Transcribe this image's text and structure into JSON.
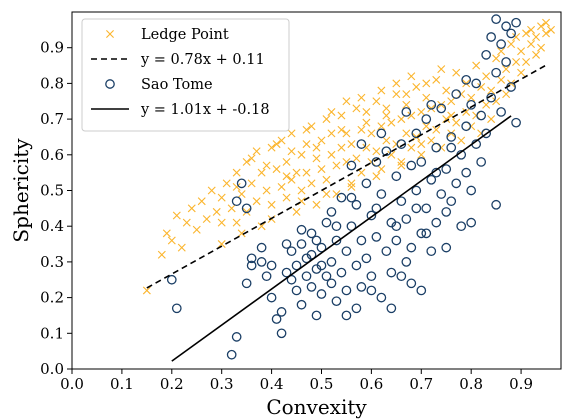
{
  "chart_data": {
    "type": "scatter",
    "xlabel": "Convexity",
    "ylabel": "Sphericity",
    "xlim": [
      0.0,
      0.98
    ],
    "ylim": [
      0.0,
      1.0
    ],
    "xticks": [
      "0.0",
      "0.1",
      "0.2",
      "0.3",
      "0.4",
      "0.5",
      "0.6",
      "0.7",
      "0.8",
      "0.9"
    ],
    "yticks": [
      "0.0",
      "0.1",
      "0.2",
      "0.3",
      "0.4",
      "0.5",
      "0.6",
      "0.7",
      "0.8",
      "0.9"
    ],
    "grid": false,
    "legend_position": "top-left",
    "colors": {
      "ledge": "#FBB52D",
      "sao": "#1B3F66",
      "line": "#000000"
    },
    "series": [
      {
        "name": "Ledge Point",
        "marker": "x",
        "points": [
          [
            0.15,
            0.22
          ],
          [
            0.18,
            0.32
          ],
          [
            0.19,
            0.38
          ],
          [
            0.2,
            0.36
          ],
          [
            0.21,
            0.43
          ],
          [
            0.22,
            0.34
          ],
          [
            0.23,
            0.41
          ],
          [
            0.24,
            0.45
          ],
          [
            0.25,
            0.39
          ],
          [
            0.26,
            0.47
          ],
          [
            0.27,
            0.42
          ],
          [
            0.28,
            0.5
          ],
          [
            0.29,
            0.44
          ],
          [
            0.3,
            0.35
          ],
          [
            0.3,
            0.48
          ],
          [
            0.31,
            0.52
          ],
          [
            0.32,
            0.45
          ],
          [
            0.33,
            0.55
          ],
          [
            0.33,
            0.41
          ],
          [
            0.34,
            0.49
          ],
          [
            0.35,
            0.58
          ],
          [
            0.35,
            0.44
          ],
          [
            0.36,
            0.52
          ],
          [
            0.37,
            0.47
          ],
          [
            0.37,
            0.61
          ],
          [
            0.38,
            0.55
          ],
          [
            0.38,
            0.4
          ],
          [
            0.39,
            0.5
          ],
          [
            0.4,
            0.62
          ],
          [
            0.4,
            0.46
          ],
          [
            0.41,
            0.56
          ],
          [
            0.42,
            0.51
          ],
          [
            0.42,
            0.64
          ],
          [
            0.43,
            0.48
          ],
          [
            0.43,
            0.58
          ],
          [
            0.44,
            0.53
          ],
          [
            0.44,
            0.66
          ],
          [
            0.45,
            0.55
          ],
          [
            0.45,
            0.44
          ],
          [
            0.46,
            0.6
          ],
          [
            0.46,
            0.5
          ],
          [
            0.47,
            0.63
          ],
          [
            0.47,
            0.55
          ],
          [
            0.48,
            0.68
          ],
          [
            0.48,
            0.52
          ],
          [
            0.49,
            0.59
          ],
          [
            0.49,
            0.46
          ],
          [
            0.5,
            0.64
          ],
          [
            0.5,
            0.56
          ],
          [
            0.51,
            0.7
          ],
          [
            0.51,
            0.53
          ],
          [
            0.52,
            0.6
          ],
          [
            0.52,
            0.66
          ],
          [
            0.53,
            0.57
          ],
          [
            0.53,
            0.49
          ],
          [
            0.54,
            0.62
          ],
          [
            0.54,
            0.71
          ],
          [
            0.55,
            0.58
          ],
          [
            0.55,
            0.66
          ],
          [
            0.56,
            0.52
          ],
          [
            0.56,
            0.63
          ],
          [
            0.57,
            0.73
          ],
          [
            0.57,
            0.59
          ],
          [
            0.58,
            0.67
          ],
          [
            0.58,
            0.55
          ],
          [
            0.59,
            0.62
          ],
          [
            0.59,
            0.72
          ],
          [
            0.6,
            0.58
          ],
          [
            0.6,
            0.66
          ],
          [
            0.61,
            0.75
          ],
          [
            0.61,
            0.61
          ],
          [
            0.62,
            0.68
          ],
          [
            0.62,
            0.56
          ],
          [
            0.63,
            0.64
          ],
          [
            0.63,
            0.73
          ],
          [
            0.64,
            0.6
          ],
          [
            0.64,
            0.69
          ],
          [
            0.65,
            0.77
          ],
          [
            0.65,
            0.63
          ],
          [
            0.66,
            0.7
          ],
          [
            0.66,
            0.58
          ],
          [
            0.67,
            0.66
          ],
          [
            0.67,
            0.74
          ],
          [
            0.68,
            0.62
          ],
          [
            0.68,
            0.71
          ],
          [
            0.69,
            0.79
          ],
          [
            0.69,
            0.65
          ],
          [
            0.7,
            0.72
          ],
          [
            0.7,
            0.6
          ],
          [
            0.71,
            0.68
          ],
          [
            0.71,
            0.76
          ],
          [
            0.72,
            0.64
          ],
          [
            0.72,
            0.73
          ],
          [
            0.73,
            0.81
          ],
          [
            0.73,
            0.67
          ],
          [
            0.74,
            0.74
          ],
          [
            0.74,
            0.62
          ],
          [
            0.75,
            0.7
          ],
          [
            0.75,
            0.78
          ],
          [
            0.76,
            0.66
          ],
          [
            0.76,
            0.75
          ],
          [
            0.77,
            0.83
          ],
          [
            0.77,
            0.69
          ],
          [
            0.78,
            0.77
          ],
          [
            0.78,
            0.64
          ],
          [
            0.79,
            0.72
          ],
          [
            0.79,
            0.8
          ],
          [
            0.8,
            0.68
          ],
          [
            0.8,
            0.76
          ],
          [
            0.81,
            0.85
          ],
          [
            0.81,
            0.71
          ],
          [
            0.82,
            0.79
          ],
          [
            0.82,
            0.66
          ],
          [
            0.83,
            0.74
          ],
          [
            0.83,
            0.82
          ],
          [
            0.84,
            0.7
          ],
          [
            0.84,
            0.78
          ],
          [
            0.85,
            0.87
          ],
          [
            0.85,
            0.75
          ],
          [
            0.86,
            0.81
          ],
          [
            0.86,
            0.89
          ],
          [
            0.87,
            0.77
          ],
          [
            0.87,
            0.84
          ],
          [
            0.88,
            0.91
          ],
          [
            0.88,
            0.8
          ],
          [
            0.89,
            0.86
          ],
          [
            0.89,
            0.93
          ],
          [
            0.9,
            0.83
          ],
          [
            0.9,
            0.89
          ],
          [
            0.91,
            0.94
          ],
          [
            0.91,
            0.86
          ],
          [
            0.92,
            0.91
          ],
          [
            0.92,
            0.95
          ],
          [
            0.93,
            0.88
          ],
          [
            0.93,
            0.93
          ],
          [
            0.94,
            0.96
          ],
          [
            0.94,
            0.9
          ],
          [
            0.95,
            0.94
          ],
          [
            0.95,
            0.97
          ],
          [
            0.96,
            0.95
          ],
          [
            0.36,
            0.59
          ],
          [
            0.41,
            0.63
          ],
          [
            0.44,
            0.61
          ],
          [
            0.47,
            0.67
          ],
          [
            0.52,
            0.72
          ],
          [
            0.55,
            0.75
          ],
          [
            0.58,
            0.76
          ],
          [
            0.62,
            0.78
          ],
          [
            0.65,
            0.8
          ],
          [
            0.68,
            0.82
          ],
          [
            0.33,
            0.51
          ],
          [
            0.39,
            0.57
          ],
          [
            0.43,
            0.54
          ],
          [
            0.49,
            0.62
          ],
          [
            0.54,
            0.67
          ],
          [
            0.59,
            0.69
          ],
          [
            0.63,
            0.71
          ],
          [
            0.67,
            0.77
          ],
          [
            0.71,
            0.8
          ],
          [
            0.74,
            0.84
          ],
          [
            0.3,
            0.41
          ],
          [
            0.34,
            0.38
          ],
          [
            0.4,
            0.42
          ],
          [
            0.46,
            0.47
          ],
          [
            0.51,
            0.49
          ],
          [
            0.56,
            0.51
          ],
          [
            0.61,
            0.54
          ],
          [
            0.66,
            0.57
          ],
          [
            0.7,
            0.63
          ],
          [
            0.76,
            0.71
          ]
        ]
      },
      {
        "name": "Sao Tome",
        "marker": "o",
        "points": [
          [
            0.2,
            0.25
          ],
          [
            0.21,
            0.17
          ],
          [
            0.32,
            0.04
          ],
          [
            0.33,
            0.09
          ],
          [
            0.33,
            0.47
          ],
          [
            0.34,
            0.52
          ],
          [
            0.35,
            0.45
          ],
          [
            0.35,
            0.24
          ],
          [
            0.36,
            0.29
          ],
          [
            0.38,
            0.3
          ],
          [
            0.39,
            0.26
          ],
          [
            0.4,
            0.2
          ],
          [
            0.41,
            0.14
          ],
          [
            0.42,
            0.16
          ],
          [
            0.42,
            0.1
          ],
          [
            0.43,
            0.27
          ],
          [
            0.44,
            0.33
          ],
          [
            0.45,
            0.22
          ],
          [
            0.45,
            0.29
          ],
          [
            0.46,
            0.35
          ],
          [
            0.46,
            0.18
          ],
          [
            0.47,
            0.26
          ],
          [
            0.47,
            0.31
          ],
          [
            0.48,
            0.38
          ],
          [
            0.48,
            0.23
          ],
          [
            0.49,
            0.15
          ],
          [
            0.49,
            0.28
          ],
          [
            0.5,
            0.21
          ],
          [
            0.5,
            0.34
          ],
          [
            0.51,
            0.41
          ],
          [
            0.51,
            0.26
          ],
          [
            0.52,
            0.3
          ],
          [
            0.52,
            0.44
          ],
          [
            0.53,
            0.19
          ],
          [
            0.53,
            0.36
          ],
          [
            0.54,
            0.48
          ],
          [
            0.54,
            0.27
          ],
          [
            0.55,
            0.33
          ],
          [
            0.55,
            0.22
          ],
          [
            0.56,
            0.4
          ],
          [
            0.56,
            0.57
          ],
          [
            0.57,
            0.29
          ],
          [
            0.57,
            0.46
          ],
          [
            0.58,
            0.36
          ],
          [
            0.58,
            0.23
          ],
          [
            0.59,
            0.52
          ],
          [
            0.59,
            0.31
          ],
          [
            0.6,
            0.43
          ],
          [
            0.6,
            0.26
          ],
          [
            0.61,
            0.58
          ],
          [
            0.61,
            0.37
          ],
          [
            0.62,
            0.49
          ],
          [
            0.62,
            0.2
          ],
          [
            0.63,
            0.33
          ],
          [
            0.63,
            0.61
          ],
          [
            0.64,
            0.41
          ],
          [
            0.64,
            0.27
          ],
          [
            0.65,
            0.54
          ],
          [
            0.65,
            0.36
          ],
          [
            0.66,
            0.47
          ],
          [
            0.66,
            0.63
          ],
          [
            0.67,
            0.3
          ],
          [
            0.67,
            0.42
          ],
          [
            0.68,
            0.57
          ],
          [
            0.68,
            0.24
          ],
          [
            0.69,
            0.5
          ],
          [
            0.69,
            0.66
          ],
          [
            0.7,
            0.38
          ],
          [
            0.7,
            0.58
          ],
          [
            0.71,
            0.45
          ],
          [
            0.71,
            0.7
          ],
          [
            0.72,
            0.33
          ],
          [
            0.72,
            0.53
          ],
          [
            0.73,
            0.62
          ],
          [
            0.73,
            0.41
          ],
          [
            0.74,
            0.49
          ],
          [
            0.74,
            0.73
          ],
          [
            0.75,
            0.56
          ],
          [
            0.75,
            0.34
          ],
          [
            0.76,
            0.65
          ],
          [
            0.76,
            0.47
          ],
          [
            0.77,
            0.52
          ],
          [
            0.77,
            0.77
          ],
          [
            0.78,
            0.6
          ],
          [
            0.78,
            0.4
          ],
          [
            0.79,
            0.68
          ],
          [
            0.79,
            0.55
          ],
          [
            0.8,
            0.74
          ],
          [
            0.8,
            0.5
          ],
          [
            0.81,
            0.63
          ],
          [
            0.81,
            0.8
          ],
          [
            0.82,
            0.58
          ],
          [
            0.82,
            0.71
          ],
          [
            0.83,
            0.88
          ],
          [
            0.83,
            0.66
          ],
          [
            0.84,
            0.93
          ],
          [
            0.84,
            0.76
          ],
          [
            0.85,
            0.98
          ],
          [
            0.85,
            0.83
          ],
          [
            0.86,
            0.91
          ],
          [
            0.86,
            0.72
          ],
          [
            0.87,
            0.96
          ],
          [
            0.87,
            0.86
          ],
          [
            0.88,
            0.94
          ],
          [
            0.88,
            0.79
          ],
          [
            0.89,
            0.97
          ],
          [
            0.89,
            0.69
          ],
          [
            0.85,
            0.46
          ],
          [
            0.8,
            0.41
          ],
          [
            0.66,
            0.26
          ],
          [
            0.7,
            0.22
          ],
          [
            0.64,
            0.17
          ],
          [
            0.6,
            0.22
          ],
          [
            0.57,
            0.17
          ],
          [
            0.55,
            0.15
          ],
          [
            0.52,
            0.24
          ],
          [
            0.5,
            0.29
          ],
          [
            0.48,
            0.32
          ],
          [
            0.44,
            0.25
          ],
          [
            0.4,
            0.29
          ],
          [
            0.38,
            0.34
          ],
          [
            0.36,
            0.31
          ],
          [
            0.58,
            0.63
          ],
          [
            0.62,
            0.66
          ],
          [
            0.67,
            0.72
          ],
          [
            0.72,
            0.74
          ],
          [
            0.76,
            0.62
          ],
          [
            0.73,
            0.55
          ],
          [
            0.69,
            0.45
          ],
          [
            0.65,
            0.4
          ],
          [
            0.61,
            0.45
          ],
          [
            0.56,
            0.48
          ],
          [
            0.53,
            0.4
          ],
          [
            0.49,
            0.36
          ],
          [
            0.46,
            0.39
          ],
          [
            0.43,
            0.35
          ],
          [
            0.79,
            0.81
          ],
          [
            0.75,
            0.44
          ],
          [
            0.71,
            0.38
          ],
          [
            0.68,
            0.34
          ]
        ]
      },
      {
        "name": "y = 0.78x + 0.11",
        "type": "line",
        "style": "dashed",
        "x": [
          0.15,
          0.95
        ],
        "y": [
          0.227,
          0.851
        ]
      },
      {
        "name": "y = 1.01x + -0.18",
        "type": "line",
        "style": "solid",
        "x": [
          0.2,
          0.88
        ],
        "y": [
          0.022,
          0.709
        ]
      }
    ],
    "legend": [
      "Ledge Point",
      "y = 0.78x + 0.11",
      "Sao Tome",
      "y = 1.01x + -0.18"
    ]
  }
}
